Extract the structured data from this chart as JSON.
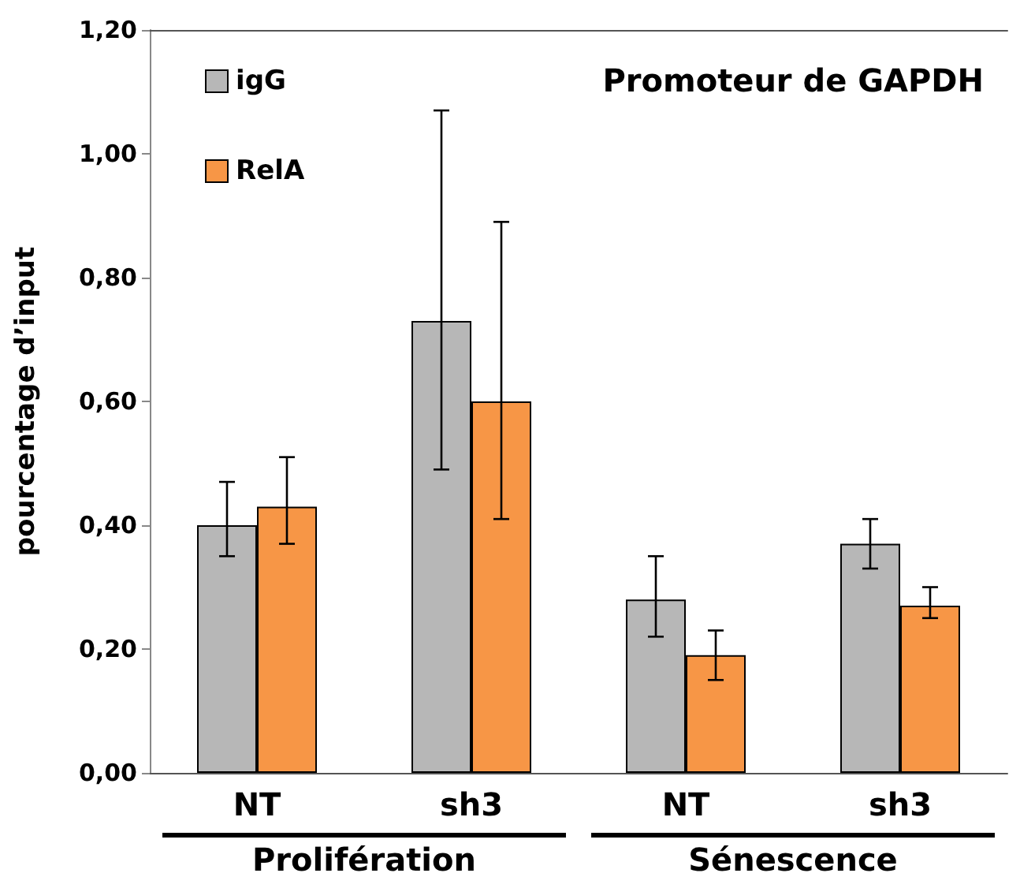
{
  "chart_data": {
    "type": "bar",
    "title": "Promoteur de GAPDH",
    "ylabel": "pourcentage d’input",
    "categories": [
      "NT",
      "sh3",
      "NT",
      "sh3"
    ],
    "series": [
      {
        "name": "igG",
        "color": "#b7b7b7",
        "values": [
          0.4,
          0.73,
          0.28,
          0.37
        ],
        "errors": [
          [
            0.35,
            0.47
          ],
          [
            0.49,
            1.07
          ],
          [
            0.22,
            0.35
          ],
          [
            0.33,
            0.41
          ]
        ]
      },
      {
        "name": "RelA",
        "color": "#f79646",
        "values": [
          0.43,
          0.6,
          0.19,
          0.27
        ],
        "errors": [
          [
            0.37,
            0.51
          ],
          [
            0.41,
            0.89
          ],
          [
            0.15,
            0.23
          ],
          [
            0.25,
            0.3
          ]
        ]
      }
    ],
    "ylim": [
      0,
      1.2
    ],
    "yticks": [
      {
        "value": 0,
        "label": "0,00"
      },
      {
        "value": 0.2,
        "label": "0,20"
      },
      {
        "value": 0.4,
        "label": "0,40"
      },
      {
        "value": 0.6,
        "label": "0,60"
      },
      {
        "value": 0.8,
        "label": "0,80"
      },
      {
        "value": 1.0,
        "label": "1,00"
      },
      {
        "value": 1.2,
        "label": "1,20"
      }
    ],
    "annotations": [
      "Prolifération",
      "Sénescence"
    ],
    "legend": "top left",
    "grid": false
  }
}
